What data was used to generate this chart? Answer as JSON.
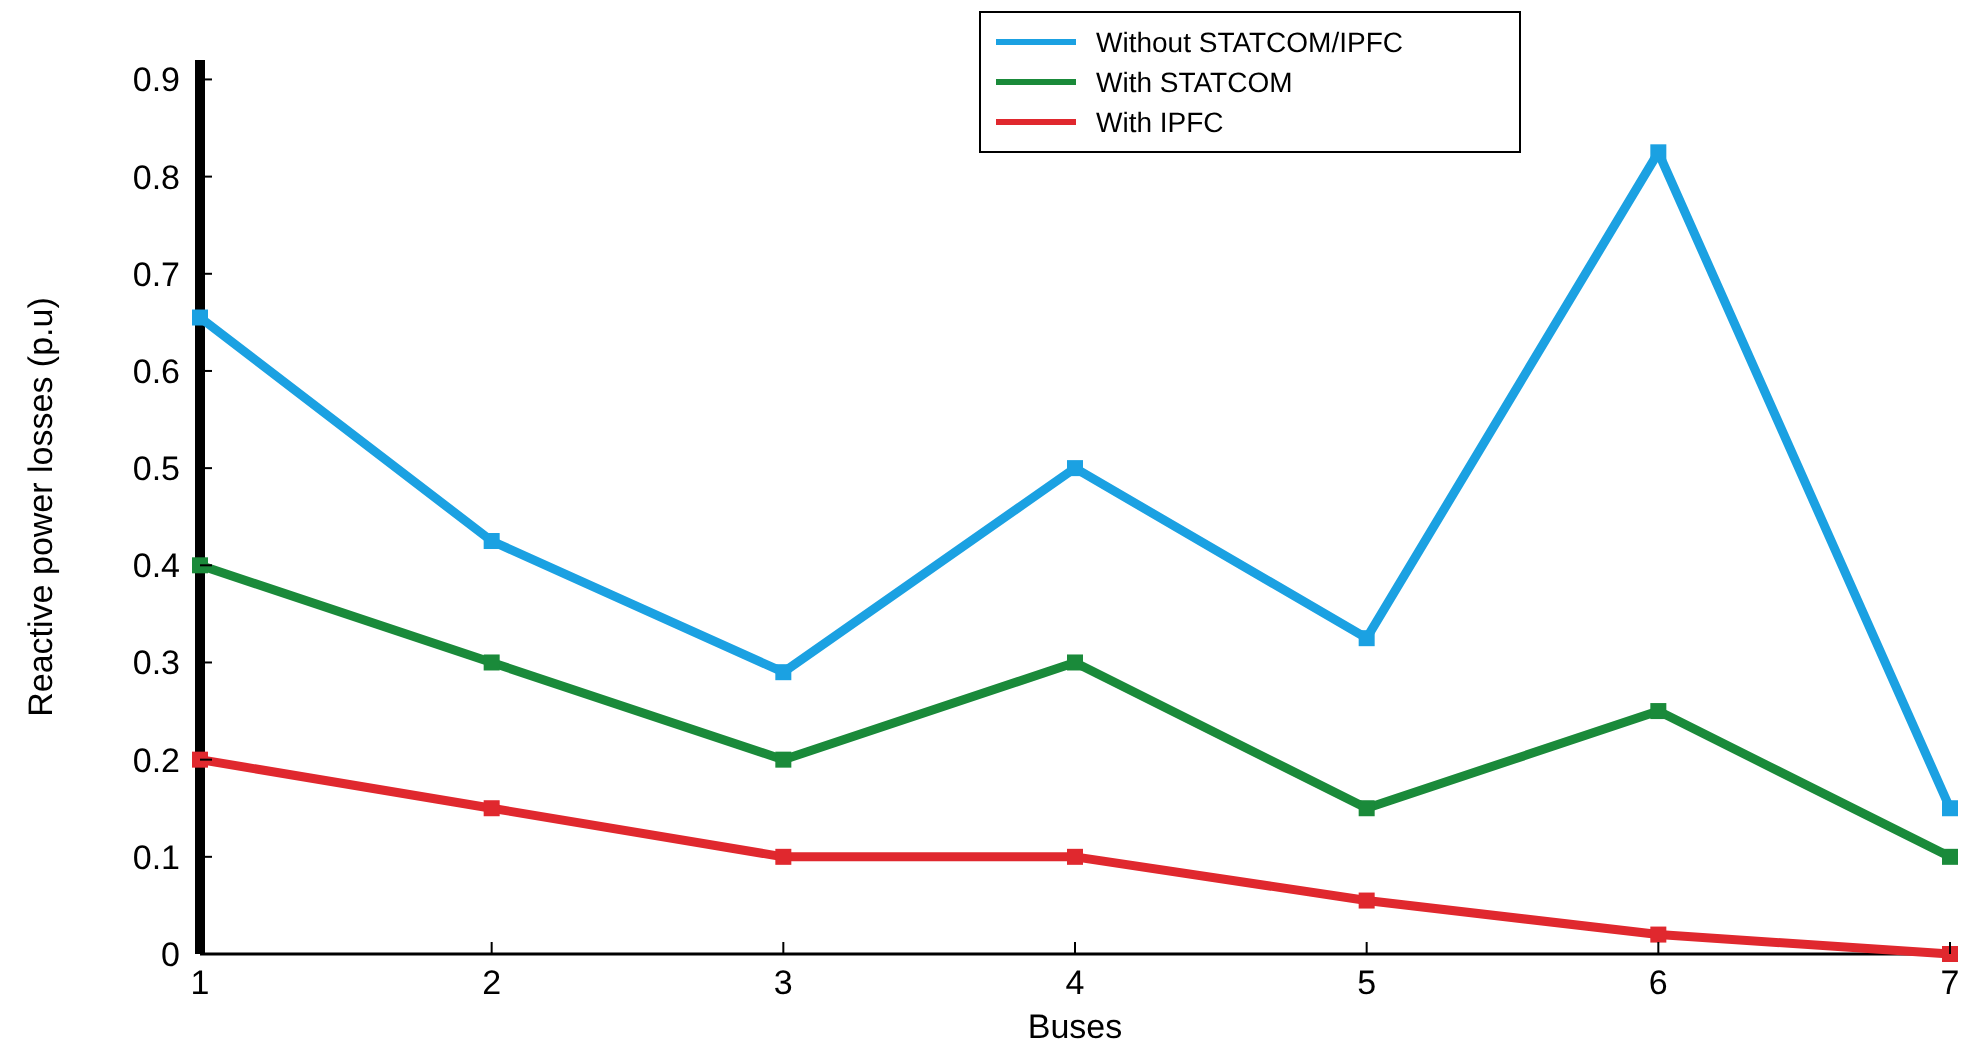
{
  "chart_data": {
    "type": "line",
    "xlabel": "Buses",
    "ylabel": "Reactive power losses (p.u)",
    "x": [
      1,
      2,
      3,
      4,
      5,
      6,
      7
    ],
    "series": [
      {
        "name": "Without STATCOM/IPFC",
        "color": "#1ba1e2",
        "values": [
          0.655,
          0.425,
          0.29,
          0.5,
          0.325,
          0.825,
          0.15
        ]
      },
      {
        "name": "With STATCOM",
        "color": "#1a8a3a",
        "values": [
          0.4,
          0.3,
          0.2,
          0.3,
          0.15,
          0.25,
          0.1
        ]
      },
      {
        "name": "With IPFC",
        "color": "#e0282e",
        "values": [
          0.2,
          0.15,
          0.1,
          0.1,
          0.055,
          0.02,
          0
        ]
      }
    ],
    "xlim": [
      1,
      7
    ],
    "xticks": [
      1,
      2,
      3,
      4,
      5,
      6,
      7
    ],
    "ylim": [
      0,
      0.92
    ],
    "yticks": [
      0,
      0.1,
      0.2,
      0.3,
      0.4,
      0.5,
      0.6,
      0.7,
      0.8,
      0.9
    ],
    "grid": false,
    "legend": "top right",
    "marker": "square",
    "line_style": "solid"
  }
}
